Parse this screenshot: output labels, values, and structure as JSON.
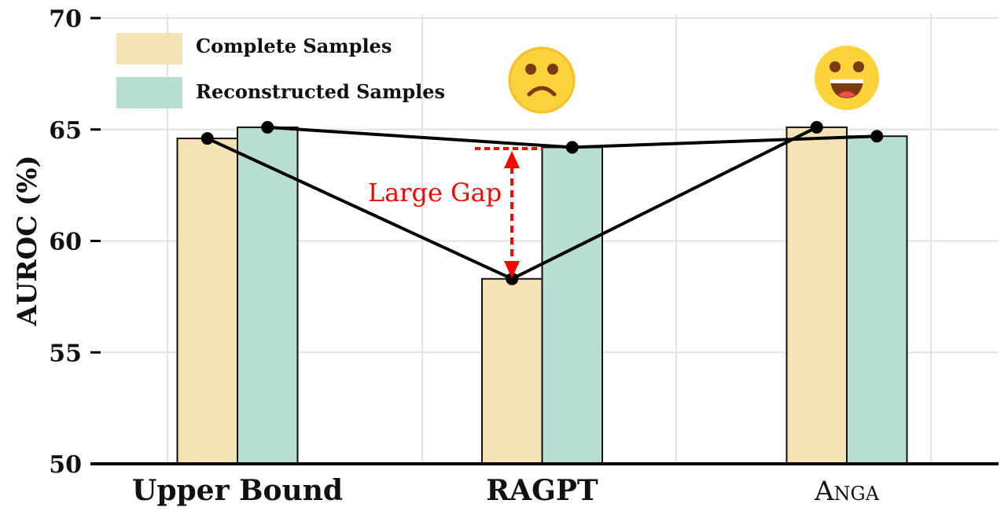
{
  "chart_data": {
    "type": "bar",
    "title": "",
    "xlabel": "",
    "ylabel": "AUROC (%)",
    "ylim": [
      50,
      70
    ],
    "yticks": [
      "50",
      "55",
      "60",
      "65",
      "70"
    ],
    "grid": true,
    "legend_position": "top-left",
    "categories": [
      "Upper Bound",
      "RAGPT",
      "Anga"
    ],
    "series": [
      {
        "name": "Complete Samples",
        "values": [
          64.6,
          58.3,
          65.1
        ],
        "color": "#f5e3b5"
      },
      {
        "name": "Reconstructed Samples",
        "values": [
          65.1,
          64.2,
          64.7
        ],
        "color": "#b8ded4"
      }
    ],
    "annotation": {
      "text": "Large Gap",
      "color": "#ff0000",
      "from": 58.3,
      "to": 64.2,
      "category": "RAGPT"
    },
    "emojis": [
      {
        "category": "RAGPT",
        "icon": "frowning-face"
      },
      {
        "category": "Anga",
        "icon": "grinning-face"
      }
    ]
  }
}
